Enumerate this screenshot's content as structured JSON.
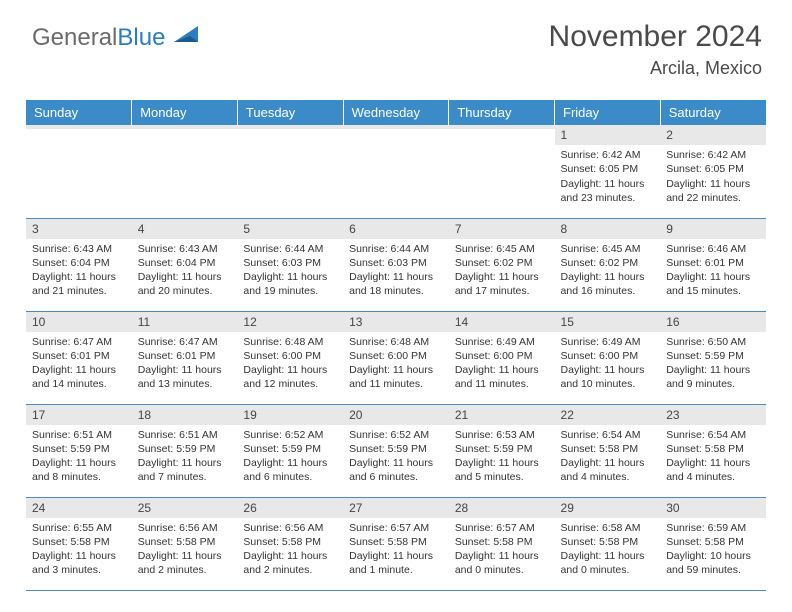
{
  "logo": {
    "text_a": "General",
    "text_b": "Blue",
    "color_a": "#6b6b6b",
    "color_b": "#2d7cc0"
  },
  "header": {
    "month_title": "November 2024",
    "location": "Arcila, Mexico"
  },
  "colors": {
    "header_bg": "#3b8bc8",
    "header_fg": "#ffffff",
    "daynum_bg": "#e8e8e8",
    "border": "#4a8cc2",
    "text": "#333333"
  },
  "weekdays": [
    "Sunday",
    "Monday",
    "Tuesday",
    "Wednesday",
    "Thursday",
    "Friday",
    "Saturday"
  ],
  "weeks": [
    [
      {
        "num": "",
        "lines": [
          "",
          "",
          "",
          ""
        ]
      },
      {
        "num": "",
        "lines": [
          "",
          "",
          "",
          ""
        ]
      },
      {
        "num": "",
        "lines": [
          "",
          "",
          "",
          ""
        ]
      },
      {
        "num": "",
        "lines": [
          "",
          "",
          "",
          ""
        ]
      },
      {
        "num": "",
        "lines": [
          "",
          "",
          "",
          ""
        ]
      },
      {
        "num": "1",
        "lines": [
          "Sunrise: 6:42 AM",
          "Sunset: 6:05 PM",
          "Daylight: 11 hours",
          "and 23 minutes."
        ]
      },
      {
        "num": "2",
        "lines": [
          "Sunrise: 6:42 AM",
          "Sunset: 6:05 PM",
          "Daylight: 11 hours",
          "and 22 minutes."
        ]
      }
    ],
    [
      {
        "num": "3",
        "lines": [
          "Sunrise: 6:43 AM",
          "Sunset: 6:04 PM",
          "Daylight: 11 hours",
          "and 21 minutes."
        ]
      },
      {
        "num": "4",
        "lines": [
          "Sunrise: 6:43 AM",
          "Sunset: 6:04 PM",
          "Daylight: 11 hours",
          "and 20 minutes."
        ]
      },
      {
        "num": "5",
        "lines": [
          "Sunrise: 6:44 AM",
          "Sunset: 6:03 PM",
          "Daylight: 11 hours",
          "and 19 minutes."
        ]
      },
      {
        "num": "6",
        "lines": [
          "Sunrise: 6:44 AM",
          "Sunset: 6:03 PM",
          "Daylight: 11 hours",
          "and 18 minutes."
        ]
      },
      {
        "num": "7",
        "lines": [
          "Sunrise: 6:45 AM",
          "Sunset: 6:02 PM",
          "Daylight: 11 hours",
          "and 17 minutes."
        ]
      },
      {
        "num": "8",
        "lines": [
          "Sunrise: 6:45 AM",
          "Sunset: 6:02 PM",
          "Daylight: 11 hours",
          "and 16 minutes."
        ]
      },
      {
        "num": "9",
        "lines": [
          "Sunrise: 6:46 AM",
          "Sunset: 6:01 PM",
          "Daylight: 11 hours",
          "and 15 minutes."
        ]
      }
    ],
    [
      {
        "num": "10",
        "lines": [
          "Sunrise: 6:47 AM",
          "Sunset: 6:01 PM",
          "Daylight: 11 hours",
          "and 14 minutes."
        ]
      },
      {
        "num": "11",
        "lines": [
          "Sunrise: 6:47 AM",
          "Sunset: 6:01 PM",
          "Daylight: 11 hours",
          "and 13 minutes."
        ]
      },
      {
        "num": "12",
        "lines": [
          "Sunrise: 6:48 AM",
          "Sunset: 6:00 PM",
          "Daylight: 11 hours",
          "and 12 minutes."
        ]
      },
      {
        "num": "13",
        "lines": [
          "Sunrise: 6:48 AM",
          "Sunset: 6:00 PM",
          "Daylight: 11 hours",
          "and 11 minutes."
        ]
      },
      {
        "num": "14",
        "lines": [
          "Sunrise: 6:49 AM",
          "Sunset: 6:00 PM",
          "Daylight: 11 hours",
          "and 11 minutes."
        ]
      },
      {
        "num": "15",
        "lines": [
          "Sunrise: 6:49 AM",
          "Sunset: 6:00 PM",
          "Daylight: 11 hours",
          "and 10 minutes."
        ]
      },
      {
        "num": "16",
        "lines": [
          "Sunrise: 6:50 AM",
          "Sunset: 5:59 PM",
          "Daylight: 11 hours",
          "and 9 minutes."
        ]
      }
    ],
    [
      {
        "num": "17",
        "lines": [
          "Sunrise: 6:51 AM",
          "Sunset: 5:59 PM",
          "Daylight: 11 hours",
          "and 8 minutes."
        ]
      },
      {
        "num": "18",
        "lines": [
          "Sunrise: 6:51 AM",
          "Sunset: 5:59 PM",
          "Daylight: 11 hours",
          "and 7 minutes."
        ]
      },
      {
        "num": "19",
        "lines": [
          "Sunrise: 6:52 AM",
          "Sunset: 5:59 PM",
          "Daylight: 11 hours",
          "and 6 minutes."
        ]
      },
      {
        "num": "20",
        "lines": [
          "Sunrise: 6:52 AM",
          "Sunset: 5:59 PM",
          "Daylight: 11 hours",
          "and 6 minutes."
        ]
      },
      {
        "num": "21",
        "lines": [
          "Sunrise: 6:53 AM",
          "Sunset: 5:59 PM",
          "Daylight: 11 hours",
          "and 5 minutes."
        ]
      },
      {
        "num": "22",
        "lines": [
          "Sunrise: 6:54 AM",
          "Sunset: 5:58 PM",
          "Daylight: 11 hours",
          "and 4 minutes."
        ]
      },
      {
        "num": "23",
        "lines": [
          "Sunrise: 6:54 AM",
          "Sunset: 5:58 PM",
          "Daylight: 11 hours",
          "and 4 minutes."
        ]
      }
    ],
    [
      {
        "num": "24",
        "lines": [
          "Sunrise: 6:55 AM",
          "Sunset: 5:58 PM",
          "Daylight: 11 hours",
          "and 3 minutes."
        ]
      },
      {
        "num": "25",
        "lines": [
          "Sunrise: 6:56 AM",
          "Sunset: 5:58 PM",
          "Daylight: 11 hours",
          "and 2 minutes."
        ]
      },
      {
        "num": "26",
        "lines": [
          "Sunrise: 6:56 AM",
          "Sunset: 5:58 PM",
          "Daylight: 11 hours",
          "and 2 minutes."
        ]
      },
      {
        "num": "27",
        "lines": [
          "Sunrise: 6:57 AM",
          "Sunset: 5:58 PM",
          "Daylight: 11 hours",
          "and 1 minute."
        ]
      },
      {
        "num": "28",
        "lines": [
          "Sunrise: 6:57 AM",
          "Sunset: 5:58 PM",
          "Daylight: 11 hours",
          "and 0 minutes."
        ]
      },
      {
        "num": "29",
        "lines": [
          "Sunrise: 6:58 AM",
          "Sunset: 5:58 PM",
          "Daylight: 11 hours",
          "and 0 minutes."
        ]
      },
      {
        "num": "30",
        "lines": [
          "Sunrise: 6:59 AM",
          "Sunset: 5:58 PM",
          "Daylight: 10 hours",
          "and 59 minutes."
        ]
      }
    ]
  ]
}
